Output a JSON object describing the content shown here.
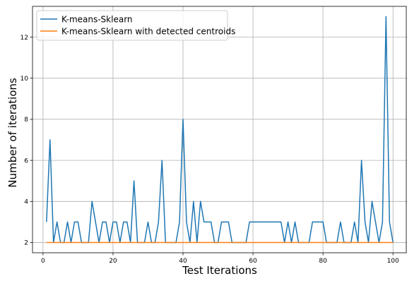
{
  "chart_data": {
    "type": "line",
    "xlabel": "Test Iterations",
    "ylabel": "Number of iterations",
    "xlim": [
      -3,
      104
    ],
    "ylim": [
      1.5,
      13.5
    ],
    "xticks": [
      0,
      20,
      40,
      60,
      80,
      100
    ],
    "yticks": [
      2,
      4,
      6,
      8,
      10,
      12
    ],
    "grid": true,
    "legend_position": "upper-left",
    "x": [
      1,
      2,
      3,
      4,
      5,
      6,
      7,
      8,
      9,
      10,
      11,
      12,
      13,
      14,
      15,
      16,
      17,
      18,
      19,
      20,
      21,
      22,
      23,
      24,
      25,
      26,
      27,
      28,
      29,
      30,
      31,
      32,
      33,
      34,
      35,
      36,
      37,
      38,
      39,
      40,
      41,
      42,
      43,
      44,
      45,
      46,
      47,
      48,
      49,
      50,
      51,
      52,
      53,
      54,
      55,
      56,
      57,
      58,
      59,
      60,
      61,
      62,
      63,
      64,
      65,
      66,
      67,
      68,
      69,
      70,
      71,
      72,
      73,
      74,
      75,
      76,
      77,
      78,
      79,
      80,
      81,
      82,
      83,
      84,
      85,
      86,
      87,
      88,
      89,
      90,
      91,
      92,
      93,
      94,
      95,
      96,
      97,
      98,
      99,
      100
    ],
    "series": [
      {
        "name": "K-means-Sklearn",
        "color": "#1f77b4",
        "values": [
          3,
          7,
          2,
          3,
          2,
          2,
          3,
          2,
          3,
          3,
          2,
          2,
          2,
          4,
          3,
          2,
          3,
          3,
          2,
          3,
          3,
          2,
          3,
          3,
          2,
          5,
          2,
          2,
          2,
          3,
          2,
          2,
          3,
          6,
          2,
          2,
          2,
          2,
          3,
          8,
          3,
          2,
          4,
          2,
          4,
          3,
          3,
          3,
          2,
          2,
          3,
          3,
          3,
          2,
          2,
          2,
          2,
          2,
          3,
          3,
          3,
          3,
          3,
          3,
          3,
          3,
          3,
          3,
          2,
          3,
          2,
          3,
          2,
          2,
          2,
          2,
          3,
          3,
          3,
          3,
          2,
          2,
          2,
          2,
          3,
          2,
          2,
          2,
          3,
          2,
          6,
          3,
          2,
          4,
          3,
          2,
          3,
          13,
          3,
          2
        ]
      },
      {
        "name": "K-means-Sklearn with detected centroids",
        "color": "#ff7f0e",
        "values": [
          2,
          2,
          2,
          2,
          2,
          2,
          2,
          2,
          2,
          2,
          2,
          2,
          2,
          2,
          2,
          2,
          2,
          2,
          2,
          2,
          2,
          2,
          2,
          2,
          2,
          2,
          2,
          2,
          2,
          2,
          2,
          2,
          2,
          2,
          2,
          2,
          2,
          2,
          2,
          2,
          2,
          2,
          2,
          2,
          2,
          2,
          2,
          2,
          2,
          2,
          2,
          2,
          2,
          2,
          2,
          2,
          2,
          2,
          2,
          2,
          2,
          2,
          2,
          2,
          2,
          2,
          2,
          2,
          2,
          2,
          2,
          2,
          2,
          2,
          2,
          2,
          2,
          2,
          2,
          2,
          2,
          2,
          2,
          2,
          2,
          2,
          2,
          2,
          2,
          2,
          2,
          2,
          2,
          2,
          2,
          2,
          2,
          2,
          2,
          2
        ]
      }
    ]
  }
}
